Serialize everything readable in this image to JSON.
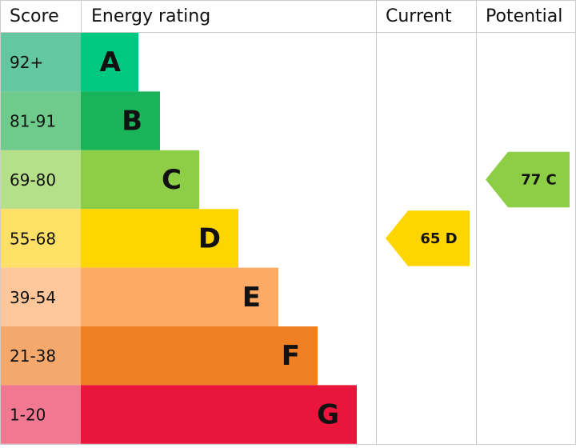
{
  "header": {
    "score": "Score",
    "rating": "Energy rating",
    "current": "Current",
    "potential": "Potential"
  },
  "rows": [
    {
      "score": "92+",
      "letter": "A",
      "color": "#00c781",
      "score_color": "#63c7a2"
    },
    {
      "score": "81-91",
      "letter": "B",
      "color": "#19b459",
      "score_color": "#6fca8c"
    },
    {
      "score": "69-80",
      "letter": "C",
      "color": "#8dce46",
      "score_color": "#b6df8a"
    },
    {
      "score": "55-68",
      "letter": "D",
      "color": "#ffd500",
      "score_color": "#ffe066"
    },
    {
      "score": "39-54",
      "letter": "E",
      "color": "#fcaa65",
      "score_color": "#fdc79b"
    },
    {
      "score": "21-38",
      "letter": "F",
      "color": "#ef8023",
      "score_color": "#f4a86c"
    },
    {
      "score": "1-20",
      "letter": "G",
      "color": "#e9153b",
      "score_color": "#f07890"
    }
  ],
  "current": {
    "label": "65 D",
    "color": "#ffd500"
  },
  "potential": {
    "label": "77 C",
    "color": "#8dce46"
  }
}
